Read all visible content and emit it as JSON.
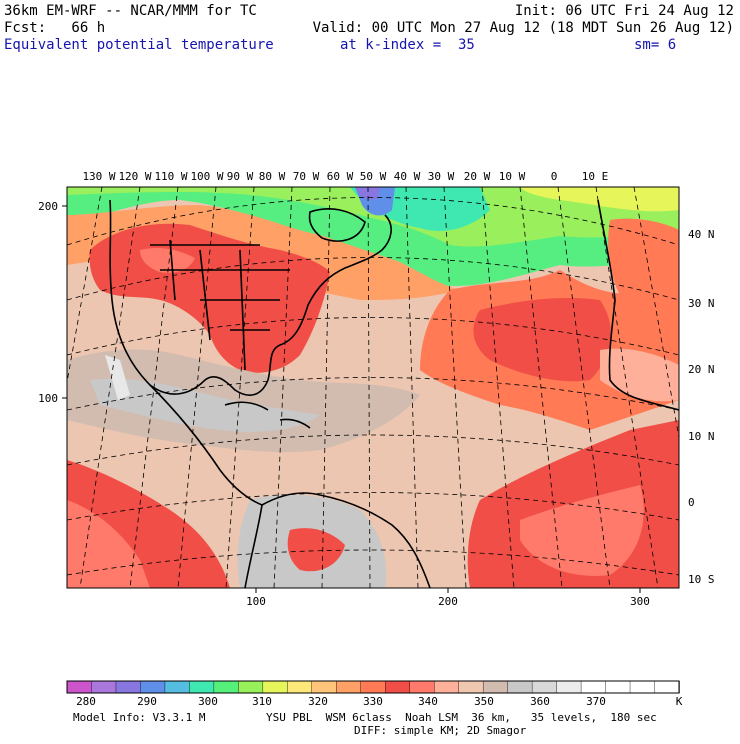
{
  "header": {
    "model_line": "36km EM-WRF -- NCAR/MMM for TC",
    "init_line": "Init: 06 UTC Fri 24 Aug 12",
    "fcst_line": "Fcst:   66 h",
    "valid_line": "Valid: 00 UTC Mon 27 Aug 12 (18 MDT Sun 26 Aug 12)",
    "field_name": "Equivalent potential temperature",
    "level_info": "at k-index =  35",
    "smoothing": "sm= 6"
  },
  "map": {
    "top_lon_labels": [
      "130 W",
      "120 W",
      "110 W",
      "100 W",
      "90 W",
      "80 W",
      "70 W",
      "60 W",
      "50 W",
      "40 W",
      "30 W",
      "20 W",
      "10 W",
      "0",
      "10 E"
    ],
    "right_lat_labels": [
      "40 N",
      "30 N",
      "20 N",
      "10 N",
      "0",
      "10 S"
    ],
    "left_grid_labels": [
      "200",
      "100"
    ],
    "bottom_grid_labels": [
      "100",
      "200",
      "300"
    ]
  },
  "colorbar": {
    "labels": [
      "280",
      "290",
      "300",
      "310",
      "320",
      "330",
      "340",
      "350",
      "360",
      "370"
    ],
    "unit": "K",
    "colors": [
      "#cc55cc",
      "#aa77dd",
      "#8877e0",
      "#5f8fe8",
      "#55bde0",
      "#3fe8b0",
      "#55f07a",
      "#98f05a",
      "#e6f55a",
      "#ffe87a",
      "#ffc57a",
      "#ffa066",
      "#ff7a55",
      "#f04e46",
      "#ff7a6a",
      "#ffb09a",
      "#f0c8b0",
      "#d2bcb0",
      "#c8c8c8",
      "#d8d8d8",
      "#ececec",
      "#ffffff",
      "#ffffff",
      "#ffffff",
      "#ffffff"
    ]
  },
  "footer": {
    "model_info": "Model Info: V3.3.1 M",
    "physics": "YSU PBL  WSM 6class  Noah LSM  36 km,   35 levels,  180 sec",
    "diffusion": "DIFF: simple KM; 2D Smagor"
  }
}
